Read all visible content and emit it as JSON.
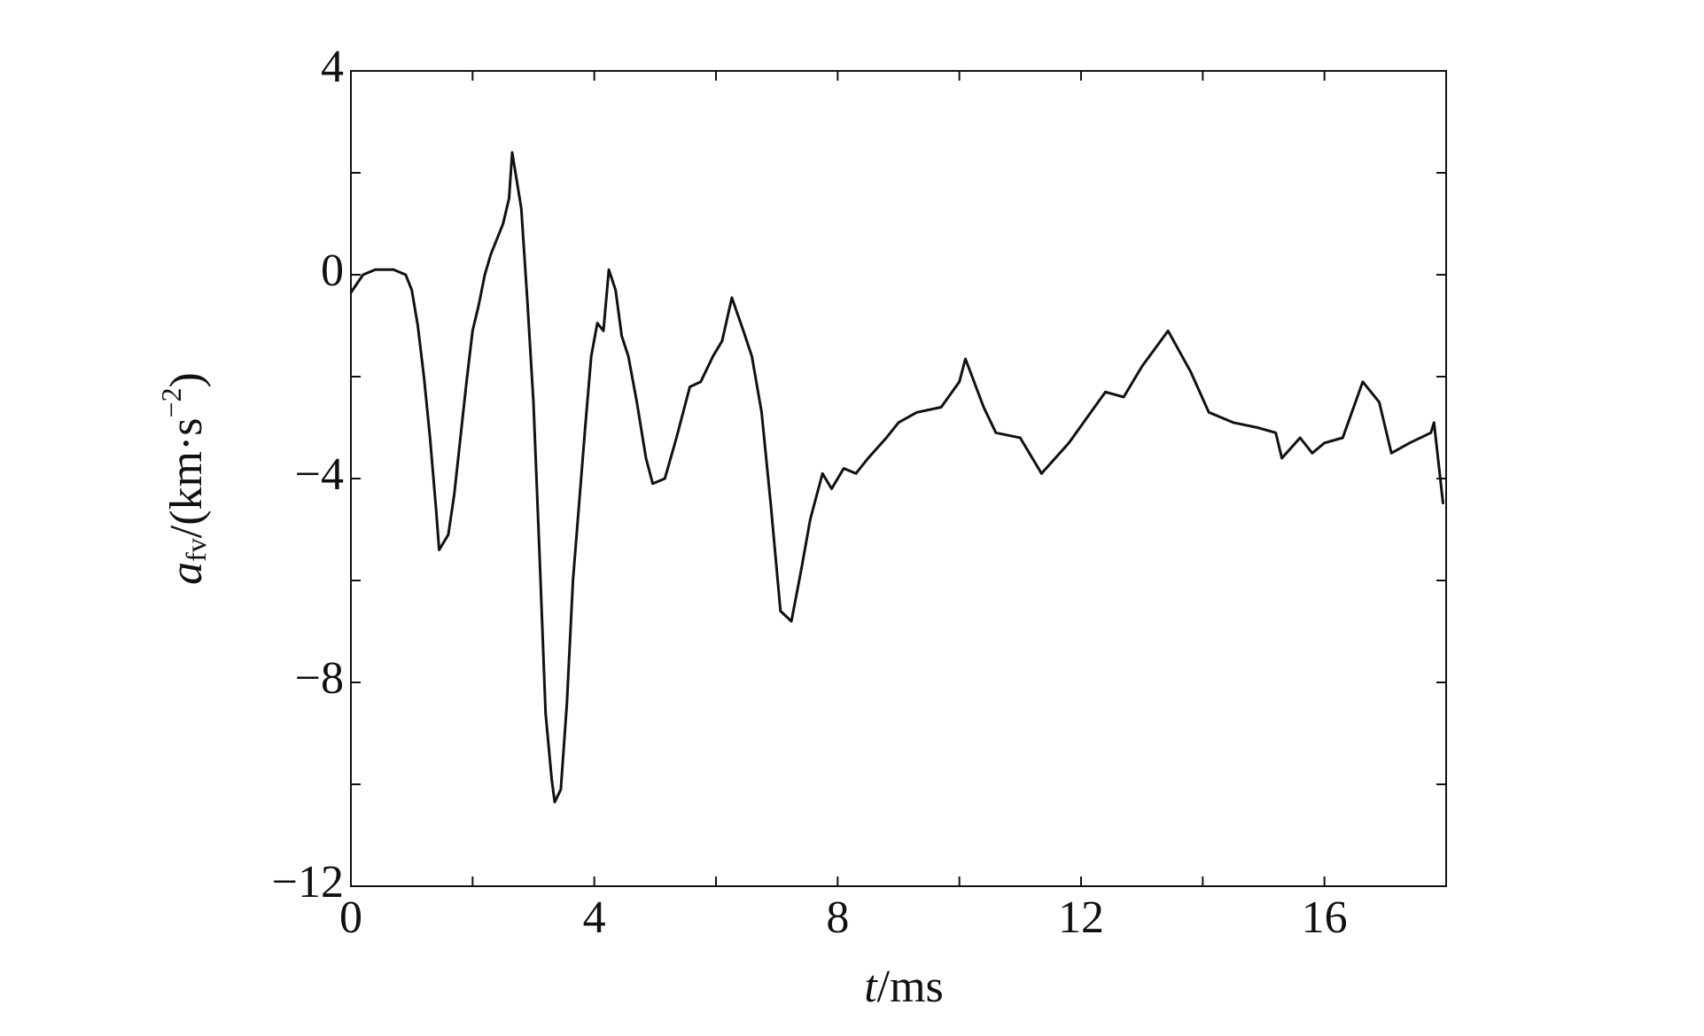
{
  "chart_data": {
    "type": "line",
    "x_label": {
      "symbol": "t",
      "unit": "/ms"
    },
    "y_label": {
      "symbol": "a",
      "subscript": "fv",
      "unit": "/(km·s",
      "superscript": "−2",
      "close": ")"
    },
    "x": [
      0,
      0.2,
      0.4,
      0.7,
      0.9,
      1.0,
      1.1,
      1.2,
      1.3,
      1.4,
      1.45,
      1.6,
      1.7,
      1.8,
      1.9,
      2.0,
      2.1,
      2.2,
      2.3,
      2.5,
      2.6,
      2.65,
      2.8,
      2.9,
      3.0,
      3.1,
      3.2,
      3.3,
      3.35,
      3.45,
      3.55,
      3.65,
      3.75,
      3.85,
      3.95,
      4.05,
      4.15,
      4.24,
      4.35,
      4.45,
      4.56,
      4.7,
      4.85,
      4.96,
      5.16,
      5.35,
      5.57,
      5.75,
      5.95,
      6.1,
      6.26,
      6.45,
      6.59,
      6.75,
      6.9,
      7.06,
      7.24,
      7.4,
      7.55,
      7.75,
      7.9,
      8.1,
      8.3,
      8.5,
      8.8,
      9.0,
      9.3,
      9.7,
      10.0,
      10.1,
      10.4,
      10.6,
      11.0,
      11.35,
      11.8,
      12.1,
      12.4,
      12.7,
      13.0,
      13.43,
      13.8,
      14.1,
      14.5,
      14.9,
      15.2,
      15.3,
      15.6,
      15.8,
      16.0,
      16.3,
      16.63,
      16.9,
      17.1,
      17.4,
      17.75,
      17.8,
      17.95
    ],
    "series": [
      {
        "color": "#111111",
        "values": [
          -0.35,
          0.0,
          0.1,
          0.1,
          0.0,
          -0.3,
          -1.0,
          -2.0,
          -3.2,
          -4.6,
          -5.4,
          -5.1,
          -4.3,
          -3.2,
          -2.1,
          -1.1,
          -0.6,
          0.0,
          0.4,
          1.0,
          1.5,
          2.4,
          1.3,
          -0.5,
          -2.5,
          -5.5,
          -8.6,
          -9.9,
          -10.35,
          -10.1,
          -8.4,
          -6.0,
          -4.5,
          -3.0,
          -1.6,
          -0.95,
          -1.1,
          0.1,
          -0.3,
          -1.2,
          -1.6,
          -2.5,
          -3.6,
          -4.1,
          -4.0,
          -3.2,
          -2.2,
          -2.1,
          -1.6,
          -1.3,
          -0.45,
          -1.1,
          -1.6,
          -2.7,
          -4.5,
          -6.6,
          -6.8,
          -5.8,
          -4.8,
          -3.9,
          -4.2,
          -3.8,
          -3.9,
          -3.6,
          -3.2,
          -2.9,
          -2.7,
          -2.6,
          -2.1,
          -1.65,
          -2.6,
          -3.1,
          -3.2,
          -3.9,
          -3.3,
          -2.8,
          -2.3,
          -2.4,
          -1.8,
          -1.1,
          -1.9,
          -2.7,
          -2.9,
          -3.0,
          -3.1,
          -3.6,
          -3.2,
          -3.5,
          -3.3,
          -3.2,
          -2.1,
          -2.5,
          -3.5,
          -3.3,
          -3.1,
          -2.9,
          -4.5
        ]
      }
    ],
    "xlim": [
      0,
      18
    ],
    "xticks": [
      0,
      4,
      8,
      12,
      16
    ],
    "xminor": [
      2,
      6,
      10,
      14
    ],
    "ylim": [
      -12,
      4
    ],
    "yticks": [
      {
        "value": -12,
        "label": "−12"
      },
      {
        "value": -8,
        "label": "−8"
      },
      {
        "value": -4,
        "label": "−4"
      },
      0,
      4
    ],
    "yminor": [
      -10,
      -6,
      -2,
      2
    ],
    "grid": false
  }
}
